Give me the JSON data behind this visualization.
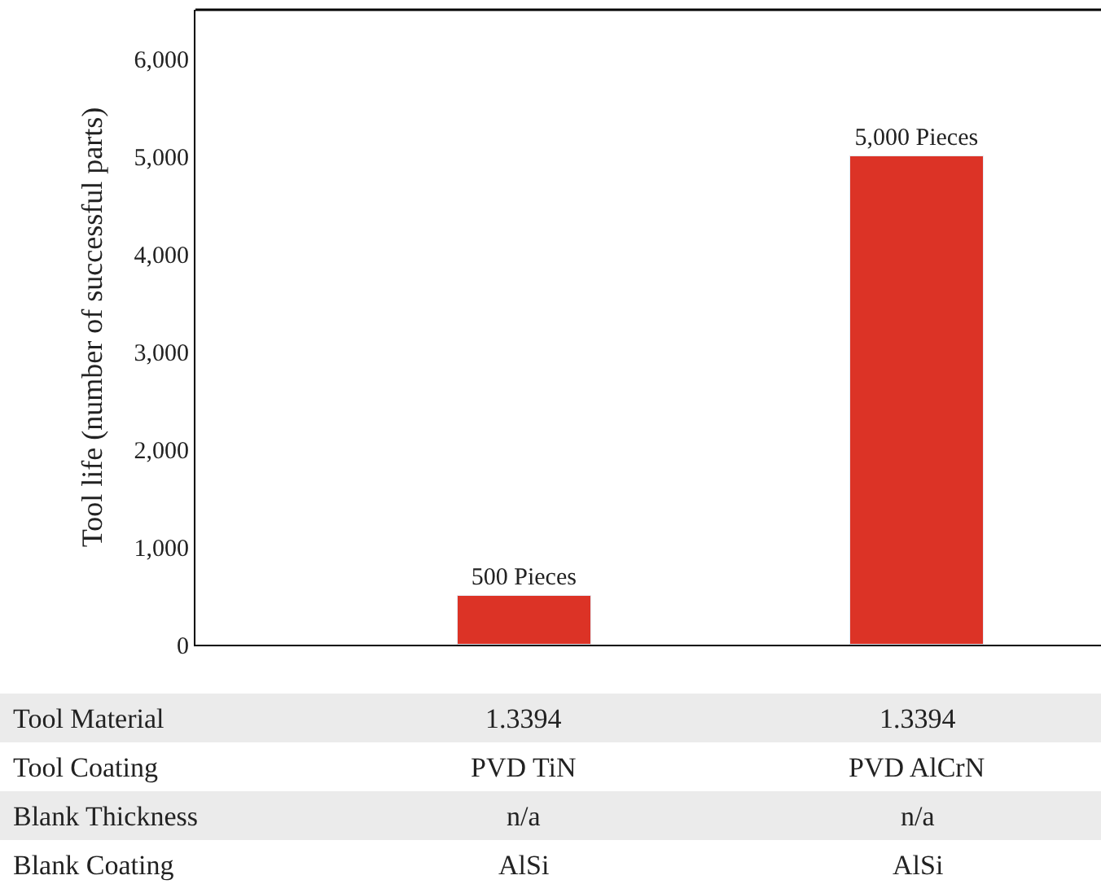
{
  "chart_data": {
    "type": "bar",
    "categories": [
      null,
      null
    ],
    "values": [
      500,
      5000
    ],
    "color": "#dc3326",
    "value_labels": [
      "500 Pieces",
      "5,000 Pieces"
    ],
    "ylabel": "Tool life (number of successful parts)",
    "ylim": [
      0,
      6500
    ],
    "yticks": [
      0,
      {
        "value": 1000,
        "label": "1,000"
      },
      {
        "value": 2000,
        "label": "2,000"
      },
      {
        "value": 3000,
        "label": "3,000"
      },
      {
        "value": 4000,
        "label": "4,000"
      },
      {
        "value": 5000,
        "label": "5,000"
      },
      {
        "value": 6000,
        "label": "6,000"
      }
    ],
    "annotations": [
      "Tool Material",
      "1.3394",
      "1.3394",
      "Tool Coating",
      "PVD TiN",
      "PVD AlCrN",
      "Blank Thickness",
      "n/a",
      "n/a",
      "Blank Coating",
      "AlSi",
      "AlSi"
    ]
  }
}
